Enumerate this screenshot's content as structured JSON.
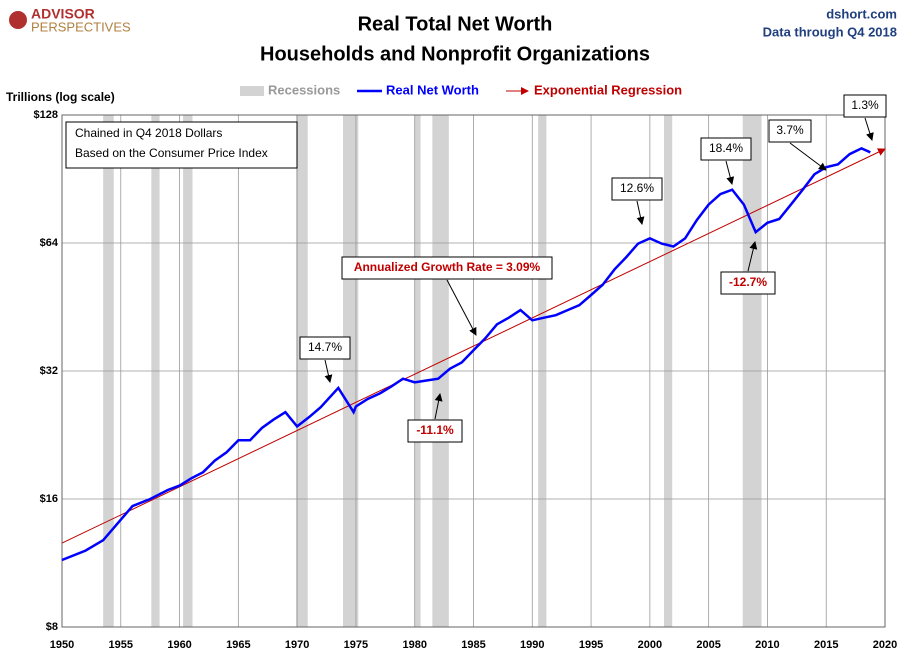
{
  "chart_data": {
    "type": "line",
    "brand": "ADVISOR",
    "brand_sub": "PERSPECTIVES",
    "source": "dshort.com",
    "note": "Data through Q4 2018",
    "title": "Real Total Net Worth",
    "subtitle": "Households and Nonprofit Organizations",
    "ylabel": "Trillions (log scale)",
    "box_lines": [
      "Chained in Q4 2018  Dollars",
      "Based on the Consumer Price Index"
    ],
    "log_scale": true,
    "grid": true,
    "xlim": [
      1950,
      2020
    ],
    "xticks": [
      1950,
      1955,
      1960,
      1965,
      1970,
      1975,
      1980,
      1985,
      1990,
      1995,
      2000,
      2005,
      2010,
      2015,
      2020
    ],
    "ylim": [
      8,
      128
    ],
    "yticks": [
      {
        "value": 8,
        "label": "$8"
      },
      {
        "value": 16,
        "label": "$16"
      },
      {
        "value": 32,
        "label": "$32"
      },
      {
        "value": 64,
        "label": "$64"
      },
      {
        "value": 128,
        "label": "$128"
      }
    ],
    "recessions": {
      "name": "Recessions",
      "color": "#d3d3d3",
      "ranges": [
        [
          1953.5,
          1954.4
        ],
        [
          1957.6,
          1958.3
        ],
        [
          1960.3,
          1961.1
        ],
        [
          1969.9,
          1970.9
        ],
        [
          1973.9,
          1975.2
        ],
        [
          1980.0,
          1980.5
        ],
        [
          1981.5,
          1982.9
        ],
        [
          1990.5,
          1991.2
        ],
        [
          2001.2,
          2001.9
        ],
        [
          2007.9,
          2009.5
        ]
      ]
    },
    "series": [
      {
        "name": "Real Net Worth",
        "color": "#0000ff",
        "x": [
          1950,
          1952,
          1953.5,
          1955,
          1956,
          1957.5,
          1959,
          1960,
          1961,
          1962,
          1963,
          1964,
          1965,
          1966,
          1967,
          1968,
          1969,
          1970,
          1971,
          1972,
          1973.5,
          1974.8,
          1975,
          1976,
          1977,
          1978,
          1979,
          1980,
          1981,
          1982,
          1983,
          1984,
          1985,
          1986,
          1987,
          1988,
          1989,
          1990,
          1991,
          1992,
          1993,
          1994,
          1995,
          1996,
          1997,
          1998,
          1999,
          2000,
          2001,
          2002,
          2003,
          2004,
          2005,
          2006,
          2007,
          2008,
          2009,
          2010,
          2011,
          2012,
          2013,
          2014,
          2015,
          2016,
          2017,
          2018,
          2018.75
        ],
        "values": [
          11.5,
          12.1,
          12.8,
          14.3,
          15.4,
          16.0,
          16.8,
          17.2,
          17.9,
          18.5,
          19.7,
          20.6,
          22.0,
          22.0,
          23.5,
          24.6,
          25.6,
          23.7,
          24.9,
          26.3,
          29.2,
          25.6,
          26.4,
          27.5,
          28.3,
          29.4,
          30.7,
          30.1,
          30.4,
          30.7,
          32.4,
          33.5,
          35.8,
          38.2,
          41.2,
          42.7,
          44.5,
          42.1,
          42.7,
          43.3,
          44.5,
          45.7,
          48.3,
          51.1,
          55.5,
          59.3,
          63.8,
          65.6,
          63.8,
          62.8,
          65.6,
          72.5,
          78.8,
          83.4,
          85.4,
          78.8,
          67.9,
          71.4,
          72.9,
          78.8,
          85.4,
          92.9,
          96.5,
          98.0,
          103.6,
          106.8,
          104.6
        ]
      },
      {
        "name": "Exponential Regression",
        "color": "#c00000",
        "x": [
          1950,
          2020
        ],
        "values": [
          12.6,
          106.5
        ]
      }
    ],
    "growth_label": "Annualized Growth Rate = 3.09%",
    "annotations": [
      "14.7%",
      "-11.1%",
      "12.6%",
      "18.4%",
      "-12.7%",
      "3.7%",
      "1.3%"
    ]
  }
}
